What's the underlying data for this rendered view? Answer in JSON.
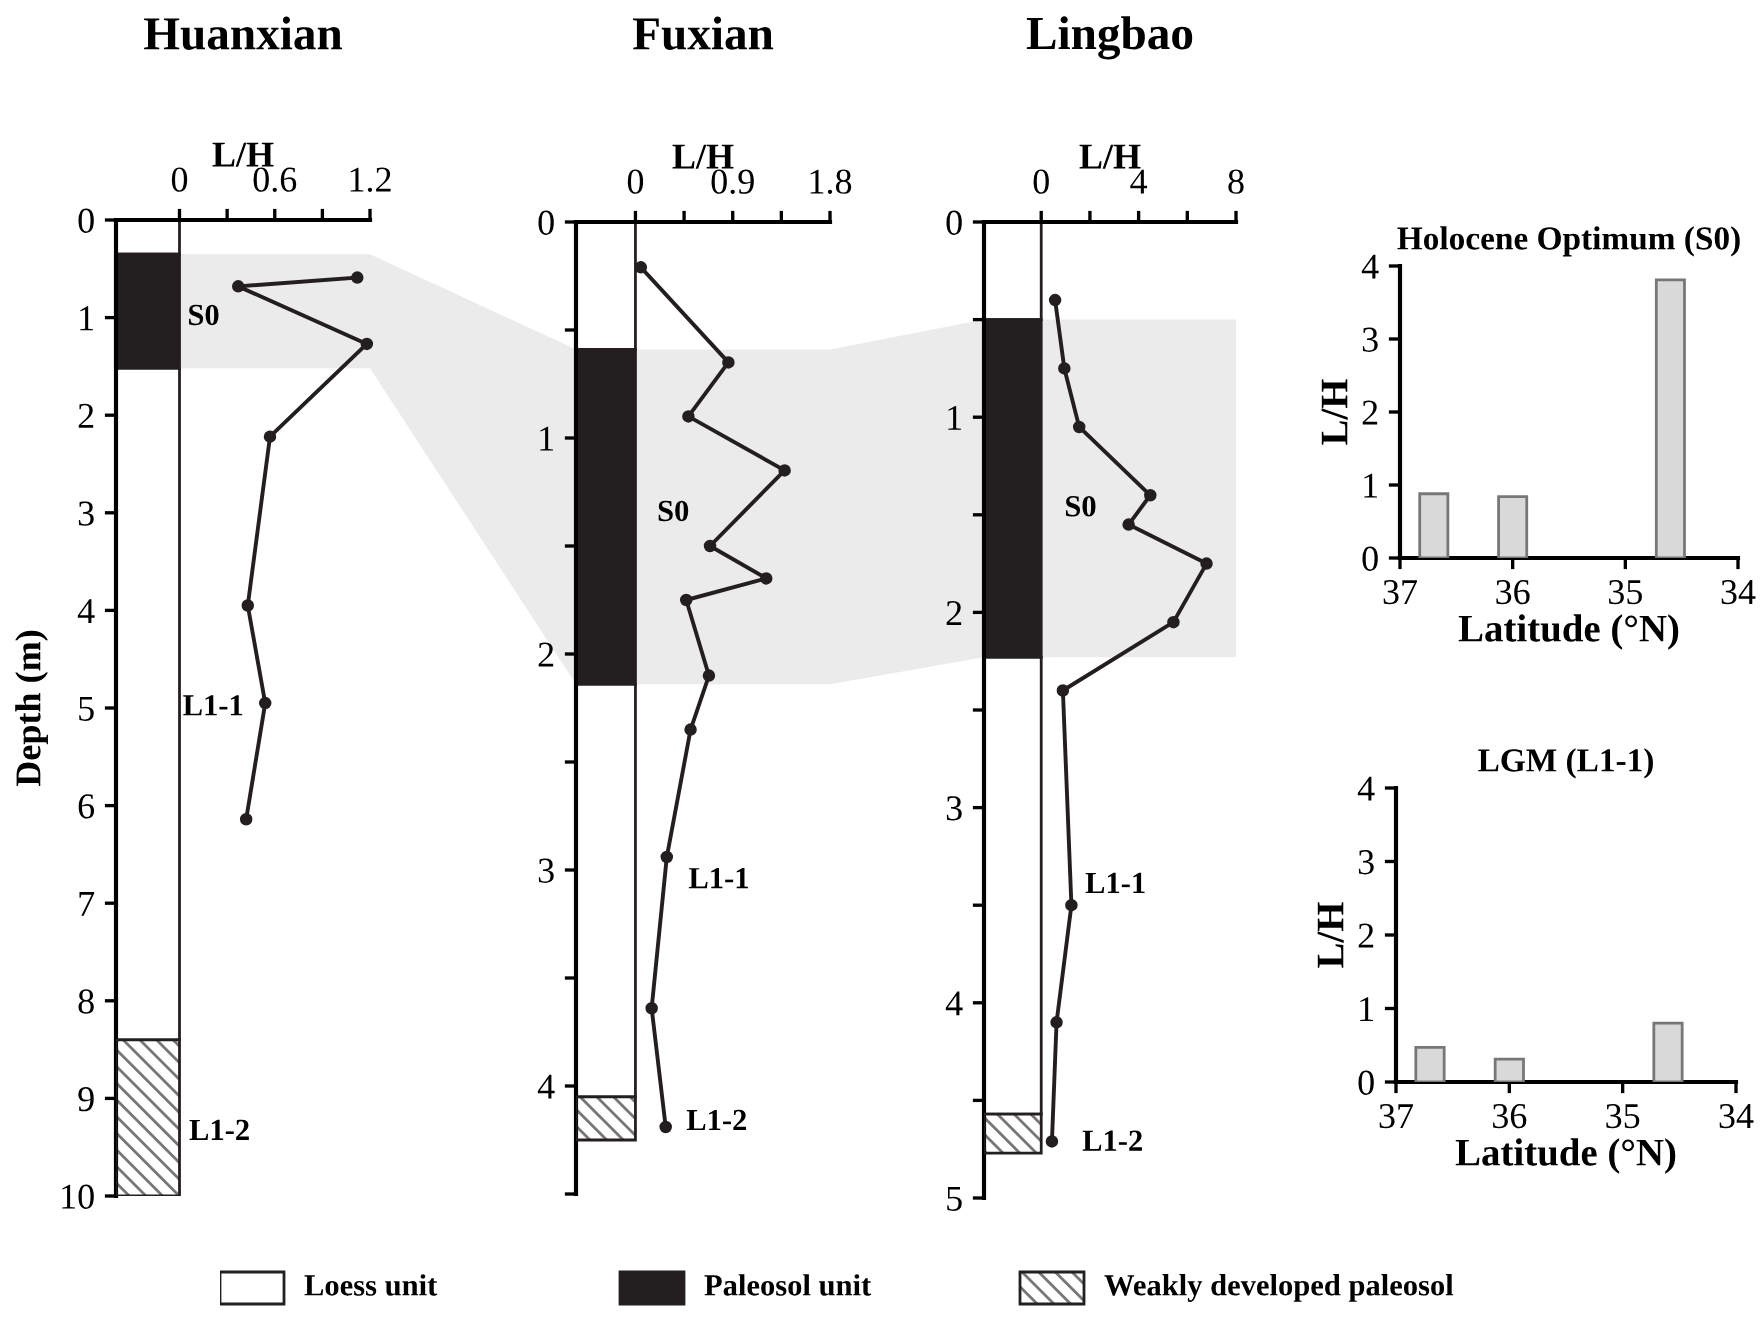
{
  "chart_data": [
    {
      "type": "line",
      "title": "Huanxian",
      "xlabel": "L/H",
      "ylabel": "Depth (m)",
      "marker": "circle",
      "line_style": "solid",
      "grid": false,
      "series": [
        {
          "color": "#231f20",
          "x": [
            1.12,
            0.37,
            1.18,
            0.57,
            0.43,
            0.54,
            0.42
          ],
          "values": [
            0.59,
            0.68,
            1.27,
            2.22,
            3.95,
            4.95,
            6.14
          ]
        }
      ],
      "xlim": [
        -0.4,
        1.2
      ],
      "xticks": [
        0,
        {
          "value": 0.3,
          "label": null
        },
        0.6,
        {
          "value": 0.9,
          "label": null
        },
        1.2
      ],
      "ylim": [
        10,
        0
      ],
      "yticks": [
        0,
        1,
        2,
        3,
        4,
        5,
        6,
        7,
        8,
        9,
        10
      ],
      "bands": [
        {
          "axis": "y",
          "from": 0,
          "to": 0.35,
          "color": "#ffffff"
        },
        {
          "axis": "y",
          "from": 0.35,
          "to": 1.52,
          "color": "#231f20"
        },
        {
          "axis": "y",
          "from": 1.52,
          "to": 8.4,
          "color": "#ffffff"
        },
        {
          "axis": "y",
          "from": 8.4,
          "to": 10,
          "color": "#777777"
        },
        {
          "axis": "y",
          "from": 0.35,
          "to": 1.52,
          "color": "#ebebeb"
        }
      ],
      "annotations": [
        "S0",
        "L1-1",
        "L1-2"
      ]
    },
    {
      "type": "line",
      "title": "Fuxian",
      "xlabel": "L/H",
      "marker": "circle",
      "line_style": "solid",
      "grid": false,
      "series": [
        {
          "color": "#231f20",
          "x": [
            0.05,
            0.86,
            0.49,
            1.38,
            0.69,
            1.21,
            0.47,
            0.68,
            0.51,
            0.29,
            0.15,
            0.28
          ],
          "values": [
            0.21,
            0.65,
            0.9,
            1.15,
            1.5,
            1.65,
            1.75,
            2.1,
            2.35,
            2.94,
            3.64,
            4.19
          ]
        }
      ],
      "xlim": [
        -0.55,
        1.8
      ],
      "xticks": [
        0,
        {
          "value": 0.45,
          "label": null
        },
        0.9,
        {
          "value": 1.35,
          "label": null
        },
        1.8
      ],
      "ylim": [
        4.5,
        0
      ],
      "yticks": [
        0,
        {
          "value": 0.5,
          "label": null
        },
        1,
        {
          "value": 1.5,
          "label": null
        },
        2,
        {
          "value": 2.5,
          "label": null
        },
        3,
        {
          "value": 3.5,
          "label": null
        },
        4,
        {
          "value": 4.5,
          "label": null
        }
      ],
      "bands": [
        {
          "axis": "y",
          "from": 0,
          "to": 0.59,
          "color": "#ffffff"
        },
        {
          "axis": "y",
          "from": 0.59,
          "to": 2.14,
          "color": "#231f20"
        },
        {
          "axis": "y",
          "from": 2.14,
          "to": 4.05,
          "color": "#ffffff"
        },
        {
          "axis": "y",
          "from": 4.05,
          "to": 4.25,
          "color": "#777777"
        },
        {
          "axis": "y",
          "from": 0.59,
          "to": 2.14,
          "color": "#ebebeb"
        }
      ],
      "annotations": [
        "S0",
        "L1-1",
        "L1-2"
      ]
    },
    {
      "type": "line",
      "title": "Lingbao",
      "xlabel": "L/H",
      "marker": "circle",
      "line_style": "solid",
      "grid": false,
      "series": [
        {
          "color": "#231f20",
          "x": [
            0.57,
            0.95,
            1.56,
            4.48,
            3.59,
            6.79,
            5.43,
            0.89,
            1.24,
            0.63,
            0.44
          ],
          "values": [
            0.4,
            0.75,
            1.05,
            1.4,
            1.55,
            1.75,
            2.05,
            2.4,
            3.5,
            4.1,
            4.71
          ]
        }
      ],
      "xlim": [
        -2.35,
        8
      ],
      "xticks": [
        0,
        {
          "value": 2,
          "label": null
        },
        4,
        {
          "value": 6,
          "label": null
        },
        8
      ],
      "ylim": [
        5,
        0
      ],
      "yticks": [
        0,
        {
          "value": 0.5,
          "label": null
        },
        1,
        {
          "value": 1.5,
          "label": null
        },
        2,
        {
          "value": 2.5,
          "label": null
        },
        3,
        {
          "value": 3.5,
          "label": null
        },
        4,
        {
          "value": 4.5,
          "label": null
        },
        5
      ],
      "bands": [
        {
          "axis": "y",
          "from": 0,
          "to": 0.5,
          "color": "#ffffff"
        },
        {
          "axis": "y",
          "from": 0.5,
          "to": 2.23,
          "color": "#231f20"
        },
        {
          "axis": "y",
          "from": 2.23,
          "to": 4.57,
          "color": "#ffffff"
        },
        {
          "axis": "y",
          "from": 4.57,
          "to": 4.77,
          "color": "#777777"
        },
        {
          "axis": "y",
          "from": 0.5,
          "to": 2.23,
          "color": "#ebebeb"
        }
      ],
      "annotations": [
        "S0",
        "L1-1",
        "L1-2"
      ]
    },
    {
      "type": "bar",
      "title": "Holocene Optimum (S0)",
      "xlabel": "Latitude (°N)",
      "ylabel": "L/H",
      "grid": false,
      "x": [
        36.7,
        36.0,
        34.6
      ],
      "values": [
        0.88,
        0.84,
        3.81
      ],
      "color": "#d9d9d9",
      "xlim": [
        37,
        34
      ],
      "xticks": [
        37,
        36,
        35,
        34
      ],
      "ylim": [
        0,
        4
      ],
      "yticks": [
        0,
        1,
        2,
        3,
        4
      ]
    },
    {
      "type": "bar",
      "title": "LGM (L1-1)",
      "xlabel": "Latitude (°N)",
      "ylabel": "L/H",
      "grid": false,
      "x": [
        36.7,
        36.0,
        34.6
      ],
      "values": [
        0.47,
        0.31,
        0.8
      ],
      "color": "#d9d9d9",
      "xlim": [
        37,
        34
      ],
      "xticks": [
        37,
        36,
        35,
        34
      ],
      "ylim": [
        0,
        4
      ],
      "yticks": [
        0,
        1,
        2,
        3,
        4
      ]
    },
    {
      "type": "other",
      "annotations": [
        "Loess unit",
        "Paleosol unit",
        "Weakly developed paleosol"
      ]
    }
  ]
}
